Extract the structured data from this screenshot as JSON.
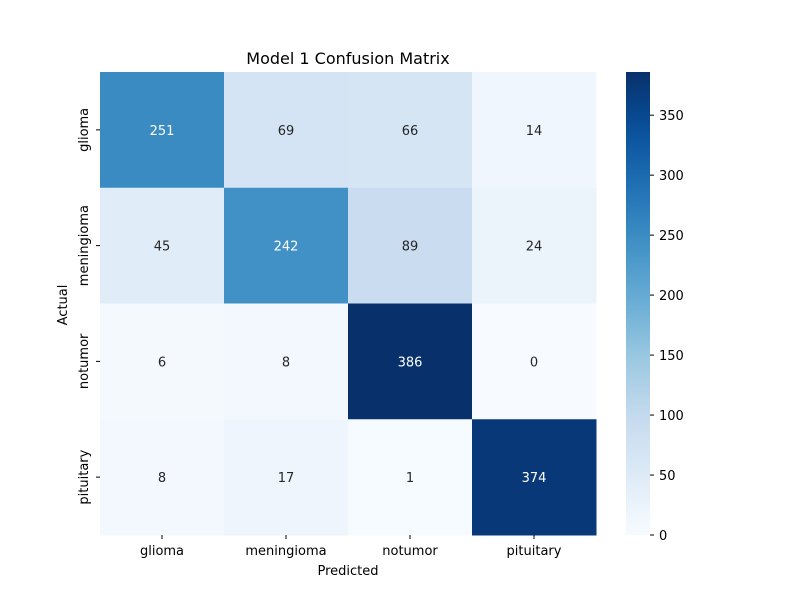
{
  "chart_data": {
    "type": "heatmap",
    "title": "Model 1 Confusion Matrix",
    "xlabel": "Predicted",
    "ylabel": "Actual",
    "x_categories": [
      "glioma",
      "meningioma",
      "notumor",
      "pituitary"
    ],
    "y_categories": [
      "glioma",
      "meningioma",
      "notumor",
      "pituitary"
    ],
    "values": [
      [
        251,
        69,
        66,
        14
      ],
      [
        45,
        242,
        89,
        24
      ],
      [
        6,
        8,
        386,
        0
      ],
      [
        8,
        17,
        1,
        374
      ]
    ],
    "colormap": "Blues",
    "colorbar": {
      "min": 0,
      "max": 386,
      "ticks": [
        0,
        50,
        100,
        150,
        200,
        250,
        300,
        350
      ]
    },
    "annotations": true
  }
}
